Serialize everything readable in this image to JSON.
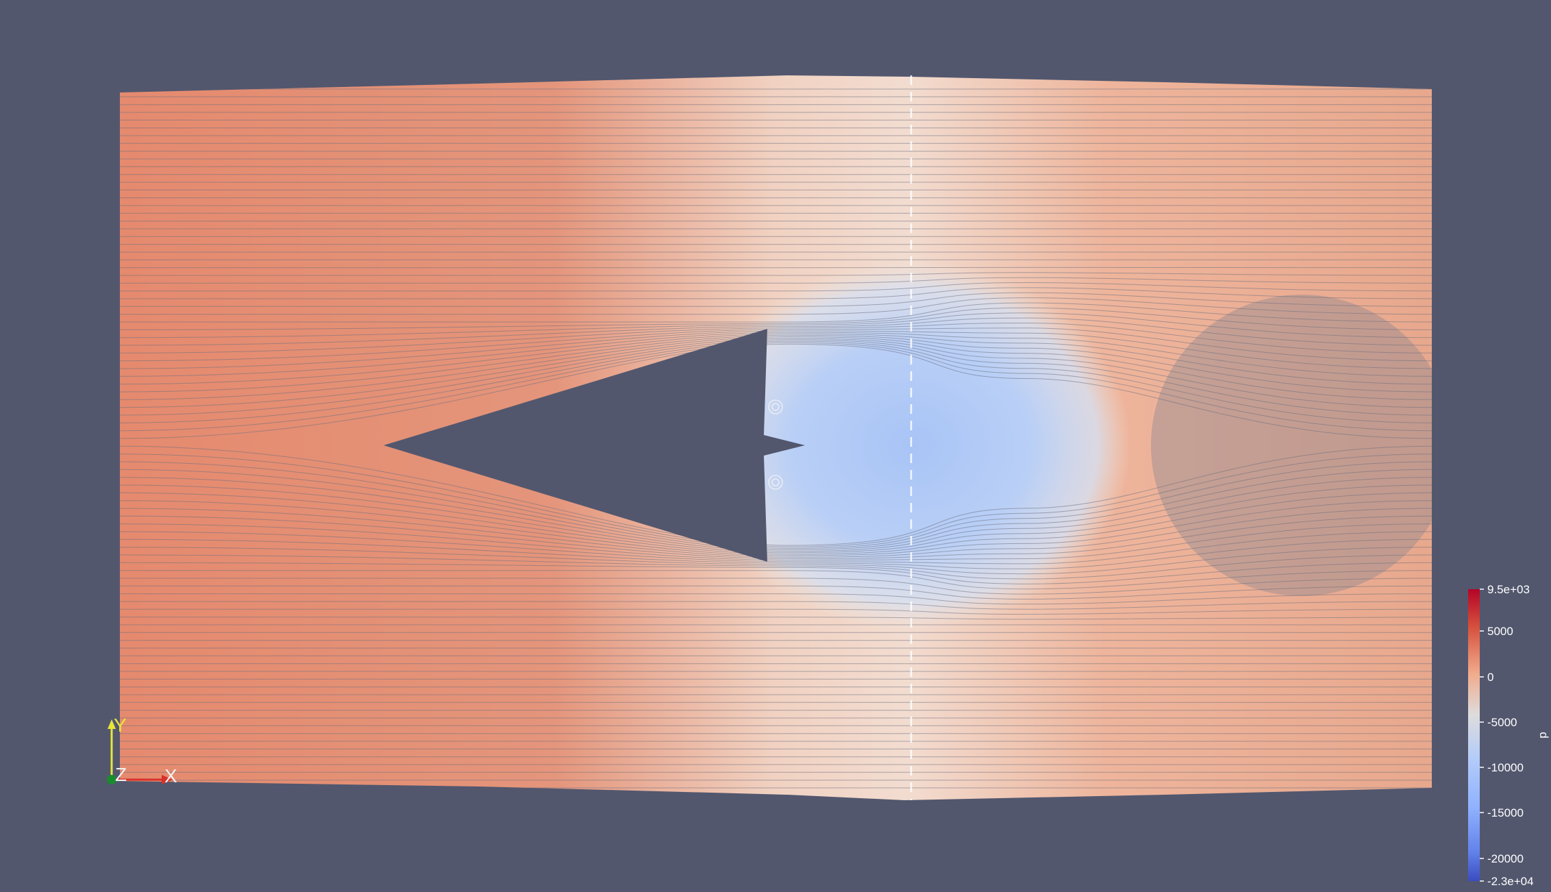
{
  "app": {
    "scene": "streamline-visualization"
  },
  "colors": {
    "background": "#52576e",
    "high_pressure": "#d94c3d",
    "mid_pressure": "#f2dcd0",
    "low_pressure": "#b3ccf8",
    "min_pressure": "#3b4cc0",
    "streamline": "#6b6f80"
  },
  "scalar_bar": {
    "field_name": "p",
    "max_label": "9.5e+03",
    "min_label": "-2.3e+04",
    "ticks": [
      "5000",
      "0",
      "-5000",
      "-10000",
      "-15000",
      "-20000"
    ],
    "colormap": "cool-to-warm"
  },
  "orientation_axes": {
    "x_label": "X",
    "y_label": "Y",
    "z_label": "Z",
    "x_color": "#d8302a",
    "y_color": "#e6e63a",
    "z_color": "#1a8c2e"
  }
}
